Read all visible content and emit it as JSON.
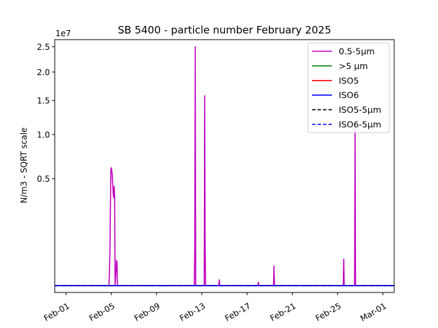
{
  "chart_data": {
    "type": "line",
    "title": "SB 5400 - particle number February 2025",
    "xlabel": "",
    "ylabel": "N/m3 - SQRT scale",
    "y_scale": "sqrt",
    "y_offset_label": "1e7",
    "ylim": [
      0,
      26500000
    ],
    "xlim": [
      "2025-01-31",
      "2025-03-02"
    ],
    "y_ticks": [
      {
        "value": 5000000,
        "label": "0.5"
      },
      {
        "value": 10000000,
        "label": "1.0"
      },
      {
        "value": 15000000,
        "label": "1.5"
      },
      {
        "value": 20000000,
        "label": "2.0"
      },
      {
        "value": 25000000,
        "label": "2.5"
      }
    ],
    "x_ticks": [
      {
        "date": "2025-02-01",
        "label": "Feb-01"
      },
      {
        "date": "2025-02-05",
        "label": "Feb-05"
      },
      {
        "date": "2025-02-09",
        "label": "Feb-09"
      },
      {
        "date": "2025-02-13",
        "label": "Feb-13"
      },
      {
        "date": "2025-02-17",
        "label": "Feb-17"
      },
      {
        "date": "2025-02-21",
        "label": "Feb-21"
      },
      {
        "date": "2025-02-25",
        "label": "Feb-25"
      },
      {
        "date": "2025-03-01",
        "label": "Mar-01"
      }
    ],
    "legend_position": "top-right",
    "series": [
      {
        "name": "0.5-5µm",
        "color": "#bf00bf",
        "dash": "solid",
        "points": [
          [
            "2025-01-31 00:00",
            0
          ],
          [
            "2025-02-04 19:00",
            0
          ],
          [
            "2025-02-04 21:00",
            400000
          ],
          [
            "2025-02-04 23:00",
            5800000
          ],
          [
            "2025-02-05 00:00",
            6100000
          ],
          [
            "2025-02-05 02:00",
            5400000
          ],
          [
            "2025-02-05 04:00",
            3700000
          ],
          [
            "2025-02-05 05:00",
            3400000
          ],
          [
            "2025-02-05 06:00",
            4300000
          ],
          [
            "2025-02-05 07:00",
            3500000
          ],
          [
            "2025-02-05 08:00",
            0
          ],
          [
            "2025-02-05 10:00",
            100000
          ],
          [
            "2025-02-05 11:00",
            280000
          ],
          [
            "2025-02-05 12:00",
            250000
          ],
          [
            "2025-02-05 13:00",
            0
          ],
          [
            "2025-02-12 08:00",
            0
          ],
          [
            "2025-02-12 09:00",
            600000
          ],
          [
            "2025-02-12 10:00",
            25000000
          ],
          [
            "2025-02-12 11:00",
            0
          ],
          [
            "2025-02-13 05:00",
            0
          ],
          [
            "2025-02-13 06:00",
            15800000
          ],
          [
            "2025-02-13 07:00",
            700000
          ],
          [
            "2025-02-13 08:00",
            0
          ],
          [
            "2025-02-14 12:00",
            0
          ],
          [
            "2025-02-14 13:00",
            15000
          ],
          [
            "2025-02-14 14:00",
            0
          ],
          [
            "2025-02-17 23:00",
            0
          ],
          [
            "2025-02-18 00:00",
            5000
          ],
          [
            "2025-02-18 01:00",
            0
          ],
          [
            "2025-02-19 08:00",
            0
          ],
          [
            "2025-02-19 09:00",
            170000
          ],
          [
            "2025-02-19 10:00",
            0
          ],
          [
            "2025-02-25 12:00",
            0
          ],
          [
            "2025-02-25 13:00",
            310000
          ],
          [
            "2025-02-25 14:00",
            0
          ],
          [
            "2025-02-26 12:00",
            0
          ],
          [
            "2025-02-26 13:00",
            11500000
          ],
          [
            "2025-02-26 14:00",
            0
          ],
          [
            "2025-03-01 23:00",
            0
          ]
        ]
      },
      {
        "name": ">5 µm",
        "color": "#008000",
        "dash": "solid",
        "points": [
          [
            "2025-01-31 00:00",
            0
          ],
          [
            "2025-03-01 23:00",
            0
          ]
        ]
      },
      {
        "name": "ISO5",
        "color": "#ff0000",
        "dash": "solid",
        "points": [
          [
            "2025-01-31 00:00",
            0
          ],
          [
            "2025-03-01 23:00",
            0
          ]
        ]
      },
      {
        "name": "ISO6",
        "color": "#0000ff",
        "dash": "solid",
        "points": [
          [
            "2025-01-31 00:00",
            0
          ],
          [
            "2025-03-01 23:00",
            0
          ]
        ]
      },
      {
        "name": "ISO5-5µm",
        "color": "#000000",
        "dash": "dashed",
        "points": [
          [
            "2025-01-31 00:00",
            0
          ],
          [
            "2025-03-01 23:00",
            0
          ]
        ]
      },
      {
        "name": "ISO6-5µm",
        "color": "#0000ff",
        "dash": "dashed",
        "points": [
          [
            "2025-01-31 00:00",
            0
          ],
          [
            "2025-03-01 23:00",
            0
          ]
        ]
      }
    ]
  }
}
